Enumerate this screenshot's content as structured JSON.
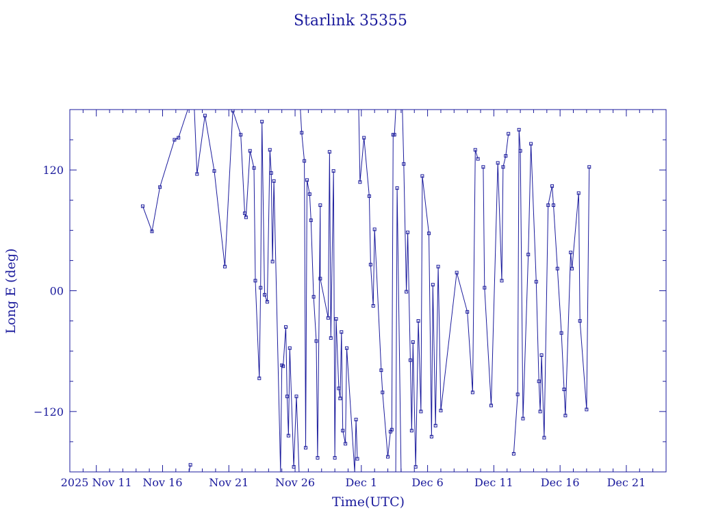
{
  "chart_data": {
    "type": "line",
    "title": "Starlink 35355",
    "xlabel": "Time(UTC)",
    "ylabel": "Long E (deg)",
    "x_unit": "days",
    "x_ticks": [
      {
        "x": 2,
        "label": "2025 Nov 11"
      },
      {
        "x": 7,
        "label": "Nov 16"
      },
      {
        "x": 12,
        "label": "Nov 21"
      },
      {
        "x": 17,
        "label": "Nov 26"
      },
      {
        "x": 22,
        "label": "Dec  1"
      },
      {
        "x": 27,
        "label": "Dec  6"
      },
      {
        "x": 32,
        "label": "Dec 11"
      },
      {
        "x": 37,
        "label": "Dec 16"
      },
      {
        "x": 42,
        "label": "Dec 21"
      }
    ],
    "y_ticks": [
      {
        "y": 120,
        "label": "120"
      },
      {
        "y": 0,
        "label": "00"
      },
      {
        "y": -120,
        "label": "−120"
      }
    ],
    "xlim": [
      0,
      45
    ],
    "ylim": [
      -180,
      180
    ],
    "grid": false,
    "series": [
      {
        "color": "#1a1a9c",
        "points": [
          [
            5.5,
            84
          ],
          [
            6.2,
            59
          ],
          [
            6.8,
            103
          ],
          [
            7.9,
            150
          ],
          [
            8.2,
            152
          ],
          [
            8.9,
            180
          ],
          [
            9.0,
            -180
          ],
          [
            9.1,
            -173
          ],
          [
            9.4,
            180
          ],
          [
            9.6,
            116
          ],
          [
            10.2,
            174
          ],
          [
            10.9,
            119
          ],
          [
            11.7,
            24
          ],
          [
            12.3,
            179
          ],
          [
            12.9,
            155
          ],
          [
            13.2,
            77
          ],
          [
            13.3,
            73
          ],
          [
            13.6,
            139
          ],
          [
            13.9,
            122
          ],
          [
            14.0,
            10
          ],
          [
            14.3,
            -87
          ],
          [
            14.4,
            3
          ],
          [
            14.5,
            168
          ],
          [
            14.7,
            -4
          ],
          [
            14.9,
            -11
          ],
          [
            15.1,
            140
          ],
          [
            15.2,
            117
          ],
          [
            15.3,
            29
          ],
          [
            15.4,
            109
          ],
          [
            15.9,
            -180
          ],
          [
            16.0,
            -74
          ],
          [
            16.1,
            -75
          ],
          [
            16.3,
            -36
          ],
          [
            16.4,
            -105
          ],
          [
            16.5,
            -144
          ],
          [
            16.6,
            -57
          ],
          [
            16.9,
            -175
          ],
          [
            17.1,
            -105
          ],
          [
            17.3,
            -180
          ],
          [
            17.4,
            180
          ],
          [
            17.5,
            157
          ],
          [
            17.7,
            129
          ],
          [
            17.8,
            -156
          ],
          [
            17.9,
            110
          ],
          [
            18.1,
            96
          ],
          [
            18.2,
            70
          ],
          [
            18.4,
            -6
          ],
          [
            18.6,
            -50
          ],
          [
            18.7,
            -166
          ],
          [
            18.9,
            85
          ],
          [
            18.9,
            12
          ],
          [
            19.5,
            -27
          ],
          [
            19.6,
            138
          ],
          [
            19.7,
            -47
          ],
          [
            19.9,
            119
          ],
          [
            20.0,
            -166
          ],
          [
            20.1,
            -28
          ],
          [
            20.3,
            -97
          ],
          [
            20.4,
            -107
          ],
          [
            20.5,
            -41
          ],
          [
            20.6,
            -139
          ],
          [
            20.8,
            -152
          ],
          [
            20.9,
            -57
          ],
          [
            21.5,
            -180
          ],
          [
            21.6,
            -128
          ],
          [
            21.7,
            -167
          ],
          [
            21.8,
            180
          ],
          [
            21.9,
            108
          ],
          [
            22.2,
            152
          ],
          [
            22.6,
            94
          ],
          [
            22.7,
            26
          ],
          [
            22.9,
            -15
          ],
          [
            23.0,
            61
          ],
          [
            23.5,
            -79
          ],
          [
            23.6,
            -101
          ],
          [
            24.0,
            -165
          ],
          [
            24.2,
            -140
          ],
          [
            24.3,
            -138
          ],
          [
            24.4,
            155
          ],
          [
            24.5,
            155
          ],
          [
            24.6,
            180
          ],
          [
            24.6,
            -180
          ],
          [
            24.7,
            102
          ],
          [
            25.0,
            -180
          ],
          [
            25.1,
            180
          ],
          [
            25.2,
            126
          ],
          [
            25.4,
            -1
          ],
          [
            25.5,
            58
          ],
          [
            25.7,
            -69
          ],
          [
            25.8,
            -139
          ],
          [
            25.9,
            -51
          ],
          [
            26.1,
            -175
          ],
          [
            26.3,
            -30
          ],
          [
            26.5,
            -120
          ],
          [
            26.6,
            114
          ],
          [
            27.1,
            57
          ],
          [
            27.3,
            -145
          ],
          [
            27.4,
            6
          ],
          [
            27.6,
            -134
          ],
          [
            27.8,
            24
          ],
          [
            28.0,
            -119
          ],
          [
            29.2,
            18
          ],
          [
            30.0,
            -21
          ],
          [
            30.4,
            -101
          ],
          [
            30.6,
            140
          ],
          [
            30.8,
            131
          ],
          [
            31.0,
            -180
          ],
          [
            31.2,
            123
          ],
          [
            31.3,
            3
          ],
          [
            31.8,
            -114
          ],
          [
            32.3,
            127
          ],
          [
            32.6,
            10
          ],
          [
            32.7,
            123
          ],
          [
            32.9,
            134
          ],
          [
            33.1,
            156
          ],
          [
            33.5,
            -162
          ],
          [
            33.8,
            -103
          ],
          [
            33.9,
            160
          ],
          [
            34.0,
            139
          ],
          [
            34.2,
            -127
          ],
          [
            34.6,
            36
          ],
          [
            34.8,
            146
          ],
          [
            35.2,
            9
          ],
          [
            35.4,
            -90
          ],
          [
            35.5,
            -120
          ],
          [
            35.6,
            -64
          ],
          [
            35.8,
            -146
          ],
          [
            36.1,
            85
          ],
          [
            36.4,
            104
          ],
          [
            36.5,
            85
          ],
          [
            36.8,
            22
          ],
          [
            37.1,
            -42
          ],
          [
            37.3,
            -98
          ],
          [
            37.4,
            -124
          ],
          [
            37.8,
            38
          ],
          [
            37.9,
            22
          ],
          [
            38.4,
            97
          ],
          [
            38.5,
            -30
          ],
          [
            39.0,
            -118
          ],
          [
            39.2,
            123
          ]
        ]
      }
    ]
  }
}
